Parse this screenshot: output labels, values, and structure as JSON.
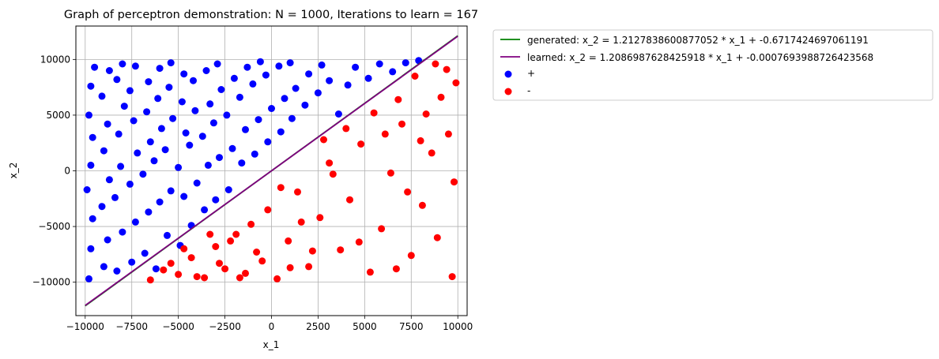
{
  "chart_data": {
    "type": "scatter",
    "title": "Graph of perceptron demonstration: N = 1000, Iterations to learn = 167",
    "xlabel": "x_1",
    "ylabel": "x_2",
    "xlim": [
      -10500,
      10500
    ],
    "ylim": [
      -13000,
      13000
    ],
    "xticks": [
      -10000,
      -7500,
      -5000,
      -2500,
      0,
      2500,
      5000,
      7500,
      10000
    ],
    "xtick_labels": [
      "−10000",
      "−7500",
      "−5000",
      "−2500",
      "0",
      "2500",
      "5000",
      "7500",
      "10000"
    ],
    "yticks": [
      -10000,
      -5000,
      0,
      5000,
      10000
    ],
    "ytick_labels": [
      "−10000",
      "−5000",
      "0",
      "5000",
      "10000"
    ],
    "grid": true,
    "legend_position": "outside-upper-right",
    "lines": [
      {
        "name": "generated: x_2 = 1.2127838600877052 * x_1 + -0.6717424697061191",
        "slope": 1.2127838600877052,
        "intercept": -0.6717424697061191,
        "x": [
          -10000,
          10000
        ],
        "color": "#008000"
      },
      {
        "name": "learned: x_2 = 1.2086987628425918 * x_1 + -0.0007693988726423568",
        "slope": 1.2086987628425918,
        "intercept": -0.0007693988726423568,
        "x": [
          -10000,
          10000
        ],
        "color": "#800080"
      }
    ],
    "series": [
      {
        "name": "+",
        "color": "#0000ff",
        "points": [
          [
            -9800,
            -9700
          ],
          [
            -9700,
            -7000
          ],
          [
            -9600,
            -4300
          ],
          [
            -9900,
            -1700
          ],
          [
            -9700,
            500
          ],
          [
            -9600,
            3000
          ],
          [
            -9800,
            5000
          ],
          [
            -9700,
            7600
          ],
          [
            -9500,
            9300
          ],
          [
            -9000,
            -8600
          ],
          [
            -8800,
            -6200
          ],
          [
            -9100,
            -3200
          ],
          [
            -8700,
            -800
          ],
          [
            -9000,
            1800
          ],
          [
            -8800,
            4200
          ],
          [
            -9100,
            6700
          ],
          [
            -8700,
            9000
          ],
          [
            -8300,
            -9000
          ],
          [
            -8000,
            -5500
          ],
          [
            -8400,
            -2400
          ],
          [
            -8100,
            400
          ],
          [
            -8200,
            3300
          ],
          [
            -7900,
            5800
          ],
          [
            -8300,
            8200
          ],
          [
            -8000,
            9600
          ],
          [
            -7500,
            -8200
          ],
          [
            -7300,
            -4600
          ],
          [
            -7600,
            -1200
          ],
          [
            -7200,
            1600
          ],
          [
            -7400,
            4500
          ],
          [
            -7600,
            7200
          ],
          [
            -7300,
            9400
          ],
          [
            -6800,
            -7400
          ],
          [
            -6600,
            -3700
          ],
          [
            -6900,
            -300
          ],
          [
            -6500,
            2600
          ],
          [
            -6700,
            5300
          ],
          [
            -6600,
            8000
          ],
          [
            -6200,
            -8800
          ],
          [
            -6000,
            -2800
          ],
          [
            -6300,
            900
          ],
          [
            -5900,
            3800
          ],
          [
            -6100,
            6500
          ],
          [
            -6000,
            9200
          ],
          [
            -5600,
            -5800
          ],
          [
            -5400,
            -1800
          ],
          [
            -5700,
            1900
          ],
          [
            -5300,
            4700
          ],
          [
            -5500,
            7500
          ],
          [
            -5400,
            9700
          ],
          [
            -4900,
            -6700
          ],
          [
            -4700,
            -2300
          ],
          [
            -5000,
            300
          ],
          [
            -4600,
            3400
          ],
          [
            -4800,
            6200
          ],
          [
            -4700,
            8700
          ],
          [
            -4300,
            -4900
          ],
          [
            -4000,
            -1100
          ],
          [
            -4400,
            2300
          ],
          [
            -4100,
            5400
          ],
          [
            -4200,
            8100
          ],
          [
            -3600,
            -3500
          ],
          [
            -3400,
            500
          ],
          [
            -3700,
            3100
          ],
          [
            -3300,
            6000
          ],
          [
            -3500,
            9000
          ],
          [
            -3000,
            -2600
          ],
          [
            -2800,
            1200
          ],
          [
            -3100,
            4300
          ],
          [
            -2700,
            7300
          ],
          [
            -2900,
            9600
          ],
          [
            -2300,
            -1700
          ],
          [
            -2100,
            2000
          ],
          [
            -2400,
            5000
          ],
          [
            -2000,
            8300
          ],
          [
            -1600,
            700
          ],
          [
            -1400,
            3700
          ],
          [
            -1700,
            6600
          ],
          [
            -1300,
            9300
          ],
          [
            -900,
            1500
          ],
          [
            -700,
            4600
          ],
          [
            -1000,
            7800
          ],
          [
            -600,
            9800
          ],
          [
            -200,
            2600
          ],
          [
            0,
            5600
          ],
          [
            -300,
            8600
          ],
          [
            500,
            3500
          ],
          [
            700,
            6500
          ],
          [
            400,
            9400
          ],
          [
            1100,
            4700
          ],
          [
            1300,
            7400
          ],
          [
            1000,
            9700
          ],
          [
            1800,
            5900
          ],
          [
            2000,
            8700
          ],
          [
            2500,
            7000
          ],
          [
            2700,
            9500
          ],
          [
            3100,
            8100
          ],
          [
            3600,
            5100
          ],
          [
            4100,
            7700
          ],
          [
            4500,
            9300
          ],
          [
            5200,
            8300
          ],
          [
            5800,
            9600
          ],
          [
            6500,
            8900
          ],
          [
            7200,
            9700
          ],
          [
            7900,
            9900
          ]
        ]
      },
      {
        "name": "-",
        "color": "#ff0000",
        "points": [
          [
            -6500,
            -9800
          ],
          [
            -5800,
            -8900
          ],
          [
            -5000,
            -9300
          ],
          [
            -4300,
            -7800
          ],
          [
            -3600,
            -9600
          ],
          [
            -3000,
            -6800
          ],
          [
            -2500,
            -8800
          ],
          [
            -1900,
            -5700
          ],
          [
            -1400,
            -9200
          ],
          [
            -800,
            -7300
          ],
          [
            -200,
            -3500
          ],
          [
            300,
            -9700
          ],
          [
            900,
            -6300
          ],
          [
            1400,
            -1900
          ],
          [
            2000,
            -8600
          ],
          [
            2600,
            -4200
          ],
          [
            3100,
            700
          ],
          [
            3700,
            -7100
          ],
          [
            4200,
            -2600
          ],
          [
            4800,
            2400
          ],
          [
            5300,
            -9100
          ],
          [
            5900,
            -5200
          ],
          [
            6400,
            -200
          ],
          [
            7000,
            4200
          ],
          [
            7500,
            -7600
          ],
          [
            8100,
            -3100
          ],
          [
            8600,
            1600
          ],
          [
            9100,
            6600
          ],
          [
            9700,
            -9500
          ],
          [
            9800,
            -1000
          ],
          [
            9500,
            3300
          ],
          [
            9900,
            7900
          ],
          [
            8800,
            9600
          ],
          [
            8300,
            5100
          ],
          [
            7700,
            8500
          ],
          [
            6800,
            6400
          ],
          [
            6100,
            3300
          ],
          [
            5500,
            5200
          ],
          [
            4700,
            -6400
          ],
          [
            4000,
            3800
          ],
          [
            3300,
            -300
          ],
          [
            2800,
            2800
          ],
          [
            2200,
            -7200
          ],
          [
            1600,
            -4600
          ],
          [
            1000,
            -8700
          ],
          [
            500,
            -1500
          ],
          [
            -500,
            -8100
          ],
          [
            -1100,
            -4800
          ],
          [
            -1700,
            -9600
          ],
          [
            -2200,
            -6300
          ],
          [
            -2800,
            -8300
          ],
          [
            -3300,
            -5700
          ],
          [
            -4000,
            -9500
          ],
          [
            -4700,
            -7000
          ],
          [
            -5400,
            -8300
          ],
          [
            6700,
            -8800
          ],
          [
            7300,
            -1900
          ],
          [
            8000,
            2700
          ],
          [
            8900,
            -6000
          ],
          [
            9400,
            9100
          ]
        ]
      }
    ]
  }
}
